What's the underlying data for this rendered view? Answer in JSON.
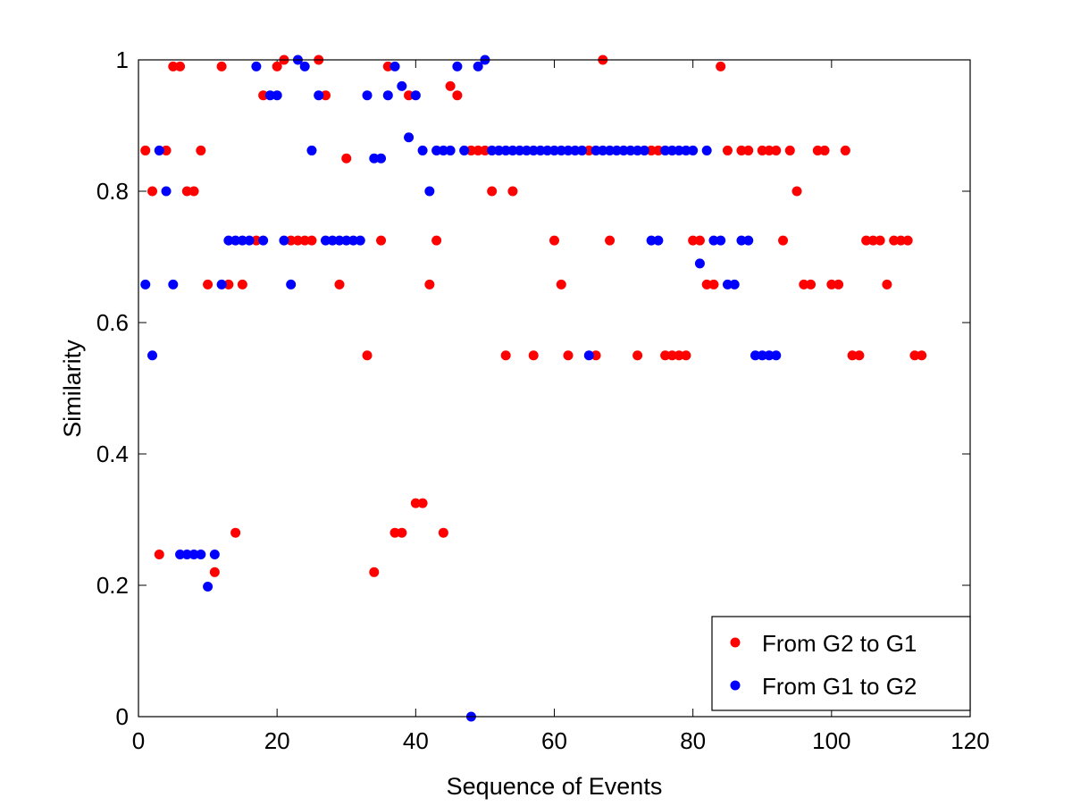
{
  "chart_data": {
    "type": "scatter",
    "xlabel": "Sequence of Events",
    "ylabel": "Similarity",
    "xlim": [
      0,
      120
    ],
    "ylim": [
      0,
      1
    ],
    "xticks": [
      0,
      20,
      40,
      60,
      80,
      100,
      120
    ],
    "yticks": [
      0,
      0.2,
      0.4,
      0.6,
      0.8,
      1
    ],
    "xtick_labels": [
      "0",
      "20",
      "40",
      "60",
      "80",
      "100",
      "120"
    ],
    "ytick_labels": [
      "0",
      "0.2",
      "0.4",
      "0.6",
      "0.8",
      "1"
    ],
    "grid": false,
    "legend_position": "bottom-right",
    "series": [
      {
        "name": "From G2 to G1",
        "color": "#ff0000",
        "points": [
          [
            1,
            0.862
          ],
          [
            2,
            0.8
          ],
          [
            3,
            0.247
          ],
          [
            4,
            0.862
          ],
          [
            5,
            0.99
          ],
          [
            6,
            0.99
          ],
          [
            7,
            0.8
          ],
          [
            8,
            0.8
          ],
          [
            9,
            0.862
          ],
          [
            10,
            0.658
          ],
          [
            11,
            0.22
          ],
          [
            12,
            0.99
          ],
          [
            13,
            0.658
          ],
          [
            14,
            0.28
          ],
          [
            15,
            0.658
          ],
          [
            17,
            0.725
          ],
          [
            18,
            0.946
          ],
          [
            20,
            0.99
          ],
          [
            21,
            1.0
          ],
          [
            22,
            0.725
          ],
          [
            23,
            0.725
          ],
          [
            24,
            0.725
          ],
          [
            25,
            0.725
          ],
          [
            26,
            1.0
          ],
          [
            27,
            0.946
          ],
          [
            29,
            0.658
          ],
          [
            30,
            0.85
          ],
          [
            33,
            0.55
          ],
          [
            34,
            0.22
          ],
          [
            35,
            0.725
          ],
          [
            36,
            0.99
          ],
          [
            37,
            0.28
          ],
          [
            38,
            0.28
          ],
          [
            39,
            0.946
          ],
          [
            40,
            0.325
          ],
          [
            41,
            0.325
          ],
          [
            42,
            0.658
          ],
          [
            43,
            0.725
          ],
          [
            44,
            0.28
          ],
          [
            45,
            0.96
          ],
          [
            46,
            0.946
          ],
          [
            48,
            0.862
          ],
          [
            49,
            0.862
          ],
          [
            50,
            0.862
          ],
          [
            51,
            0.8
          ],
          [
            53,
            0.55
          ],
          [
            54,
            0.8
          ],
          [
            57,
            0.55
          ],
          [
            60,
            0.725
          ],
          [
            61,
            0.658
          ],
          [
            62,
            0.55
          ],
          [
            65,
            0.862
          ],
          [
            66,
            0.55
          ],
          [
            67,
            1.0
          ],
          [
            68,
            0.725
          ],
          [
            72,
            0.55
          ],
          [
            74,
            0.862
          ],
          [
            75,
            0.862
          ],
          [
            76,
            0.55
          ],
          [
            77,
            0.55
          ],
          [
            78,
            0.55
          ],
          [
            79,
            0.55
          ],
          [
            80,
            0.725
          ],
          [
            81,
            0.725
          ],
          [
            82,
            0.658
          ],
          [
            83,
            0.658
          ],
          [
            84,
            0.99
          ],
          [
            85,
            0.862
          ],
          [
            87,
            0.862
          ],
          [
            88,
            0.862
          ],
          [
            90,
            0.862
          ],
          [
            91,
            0.862
          ],
          [
            92,
            0.862
          ],
          [
            93,
            0.725
          ],
          [
            94,
            0.862
          ],
          [
            95,
            0.8
          ],
          [
            96,
            0.658
          ],
          [
            97,
            0.658
          ],
          [
            98,
            0.862
          ],
          [
            99,
            0.862
          ],
          [
            100,
            0.658
          ],
          [
            101,
            0.658
          ],
          [
            102,
            0.862
          ],
          [
            103,
            0.55
          ],
          [
            104,
            0.55
          ],
          [
            105,
            0.725
          ],
          [
            106,
            0.725
          ],
          [
            107,
            0.725
          ],
          [
            108,
            0.658
          ],
          [
            109,
            0.725
          ],
          [
            110,
            0.725
          ],
          [
            111,
            0.725
          ],
          [
            112,
            0.55
          ],
          [
            113,
            0.55
          ]
        ]
      },
      {
        "name": "From G1 to G2",
        "color": "#0000ff",
        "points": [
          [
            1,
            0.658
          ],
          [
            2,
            0.55
          ],
          [
            3,
            0.862
          ],
          [
            4,
            0.8
          ],
          [
            5,
            0.658
          ],
          [
            6,
            0.247
          ],
          [
            7,
            0.247
          ],
          [
            8,
            0.247
          ],
          [
            9,
            0.247
          ],
          [
            10,
            0.198
          ],
          [
            11,
            0.247
          ],
          [
            12,
            0.658
          ],
          [
            13,
            0.725
          ],
          [
            14,
            0.725
          ],
          [
            15,
            0.725
          ],
          [
            16,
            0.725
          ],
          [
            17,
            0.99
          ],
          [
            18,
            0.725
          ],
          [
            19,
            0.946
          ],
          [
            20,
            0.946
          ],
          [
            21,
            0.725
          ],
          [
            22,
            0.658
          ],
          [
            23,
            1.0
          ],
          [
            24,
            0.99
          ],
          [
            25,
            0.862
          ],
          [
            26,
            0.946
          ],
          [
            27,
            0.725
          ],
          [
            28,
            0.725
          ],
          [
            29,
            0.725
          ],
          [
            30,
            0.725
          ],
          [
            31,
            0.725
          ],
          [
            32,
            0.725
          ],
          [
            33,
            0.946
          ],
          [
            34,
            0.85
          ],
          [
            35,
            0.85
          ],
          [
            36,
            0.946
          ],
          [
            37,
            0.99
          ],
          [
            38,
            0.96
          ],
          [
            39,
            0.882
          ],
          [
            40,
            0.946
          ],
          [
            41,
            0.862
          ],
          [
            42,
            0.8
          ],
          [
            43,
            0.862
          ],
          [
            44,
            0.862
          ],
          [
            45,
            0.862
          ],
          [
            46,
            0.99
          ],
          [
            47,
            0.862
          ],
          [
            48,
            0.0
          ],
          [
            49,
            0.99
          ],
          [
            50,
            1.0
          ],
          [
            51,
            0.862
          ],
          [
            52,
            0.862
          ],
          [
            53,
            0.862
          ],
          [
            54,
            0.862
          ],
          [
            55,
            0.862
          ],
          [
            56,
            0.862
          ],
          [
            57,
            0.862
          ],
          [
            58,
            0.862
          ],
          [
            59,
            0.862
          ],
          [
            60,
            0.862
          ],
          [
            61,
            0.862
          ],
          [
            62,
            0.862
          ],
          [
            63,
            0.862
          ],
          [
            64,
            0.862
          ],
          [
            65,
            0.55
          ],
          [
            66,
            0.862
          ],
          [
            67,
            0.862
          ],
          [
            68,
            0.862
          ],
          [
            69,
            0.862
          ],
          [
            70,
            0.862
          ],
          [
            71,
            0.862
          ],
          [
            72,
            0.862
          ],
          [
            73,
            0.862
          ],
          [
            74,
            0.725
          ],
          [
            75,
            0.725
          ],
          [
            76,
            0.862
          ],
          [
            77,
            0.862
          ],
          [
            78,
            0.862
          ],
          [
            79,
            0.862
          ],
          [
            80,
            0.862
          ],
          [
            81,
            0.69
          ],
          [
            82,
            0.862
          ],
          [
            83,
            0.725
          ],
          [
            84,
            0.725
          ],
          [
            85,
            0.658
          ],
          [
            86,
            0.658
          ],
          [
            87,
            0.725
          ],
          [
            88,
            0.725
          ],
          [
            89,
            0.55
          ],
          [
            90,
            0.55
          ],
          [
            91,
            0.55
          ],
          [
            92,
            0.55
          ]
        ]
      }
    ]
  }
}
